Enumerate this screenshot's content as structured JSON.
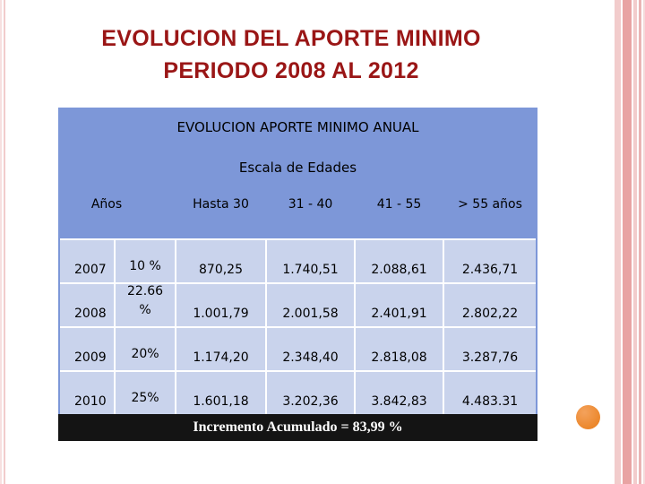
{
  "colors": {
    "title_red": "#9a1616",
    "table_header_blue": "#7d97d8",
    "cell_blue": "#c9d3ec",
    "footer_black": "#141414",
    "circle_orange": "#ec7f1e",
    "stripe_pink": "#e8a3a3"
  },
  "title": {
    "line1": "EVOLUCION DEL APORTE MINIMO",
    "line2": "PERIODO 2008 AL 2012"
  },
  "table": {
    "header": "EVOLUCION APORTE MINIMO ANUAL",
    "subheader": "Escala de Edades",
    "columns": [
      "Años",
      "Hasta 30",
      "31 - 40",
      "41 - 55",
      "> 55 años"
    ],
    "rows": [
      {
        "year": "2007",
        "percent": "10 %",
        "values": [
          "870,25",
          "1.740,51",
          "2.088,61",
          "2.436,71"
        ]
      },
      {
        "year": "2008",
        "percent": "22.66\n%",
        "values": [
          "1.001,79",
          "2.001,58",
          "2.401,91",
          "2.802,22"
        ]
      },
      {
        "year": "2009",
        "percent": "20%",
        "values": [
          "1.174,20",
          "2.348,40",
          "2.818,08",
          "3.287,76"
        ]
      },
      {
        "year": "2010",
        "percent": "25%",
        "values": [
          "1.601,18",
          "3.202,36",
          "3.842,83",
          "4.483.31"
        ]
      }
    ],
    "footer": "Incremento Acumulado = 83,99 %"
  }
}
